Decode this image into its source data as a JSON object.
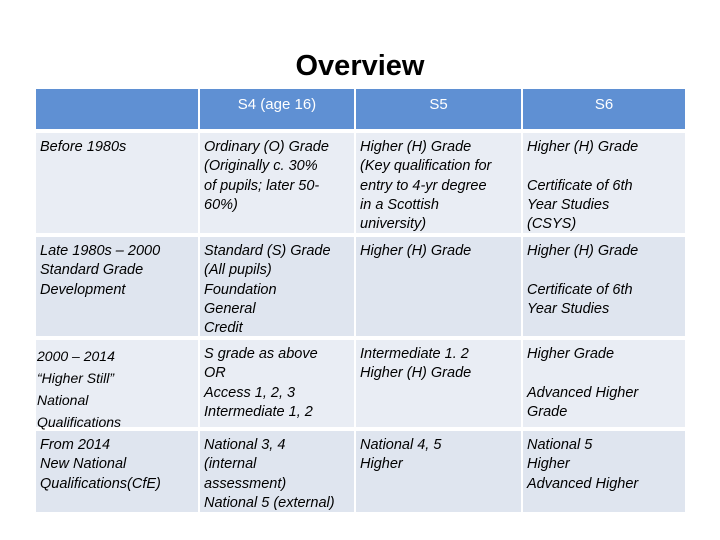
{
  "title": "Overview",
  "table": {
    "header": [
      "S4 (age 16)",
      "S5",
      "S6"
    ],
    "rows": [
      [
        [
          [
            "Before  1980s"
          ]
        ],
        [
          [
            "Ordinary (O) Grade",
            "(Originally c. 30%",
            "of pupils; later 50-",
            "60%)"
          ]
        ],
        [
          [
            "Higher (H) Grade",
            "(Key qualification for",
            "entry to 4-yr degree",
            "in a Scottish",
            "university)"
          ]
        ],
        [
          [
            "Higher (H) Grade"
          ],
          [
            "Certificate of 6th",
            "Year Studies",
            "(CSYS)"
          ]
        ]
      ],
      [
        [
          [
            "Late 1980s – 2000",
            "Standard Grade",
            "Development"
          ]
        ],
        [
          [
            "Standard (S) Grade",
            "(All pupils)",
            "Foundation",
            "General",
            "Credit"
          ]
        ],
        [
          [
            "Higher (H) Grade"
          ]
        ],
        [
          [
            "Higher (H) Grade"
          ],
          [
            "Certificate of 6th",
            "Year Studies"
          ]
        ]
      ],
      [
        [
          [
            "2000 – 2014",
            "“Higher Still”",
            "National",
            "Qualifications"
          ]
        ],
        [
          [
            "S grade as above",
            "OR",
            "Access 1, 2, 3",
            "Intermediate 1, 2"
          ]
        ],
        [
          [
            "Intermediate  1. 2",
            "Higher (H) Grade"
          ]
        ],
        [
          [
            "Higher Grade"
          ],
          [
            "Advanced Higher",
            "Grade"
          ]
        ]
      ],
      [
        [
          [
            "From 2014",
            "New National",
            "Qualifications(CfE)"
          ]
        ],
        [
          [
            "National 3, 4",
            "(internal",
            "assessment)",
            "National 5 (external)"
          ]
        ],
        [
          [
            "National  4, 5",
            "Higher"
          ]
        ],
        [
          [
            "National  5",
            "Higher",
            "Advanced Higher"
          ]
        ]
      ]
    ]
  }
}
